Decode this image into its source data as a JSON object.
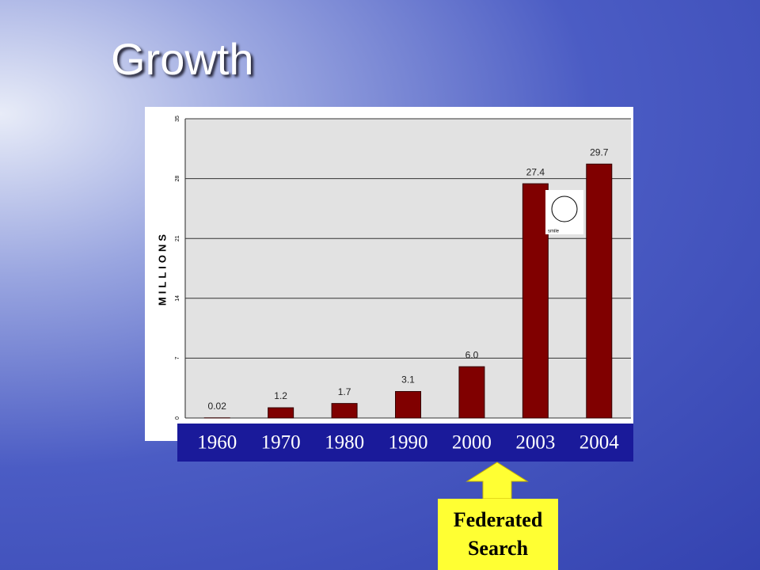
{
  "title": "Growth",
  "chart_data": {
    "type": "bar",
    "y_axis_label": "MILLIONS",
    "categories": [
      "1960",
      "1970",
      "1980",
      "1990",
      "2000",
      "2003",
      "2004"
    ],
    "values": [
      0.02,
      1.2,
      1.7,
      3.1,
      6.0,
      27.4,
      29.7
    ],
    "value_labels": [
      "0.02",
      "1.2",
      "1.7",
      "3.1",
      "6.0",
      "27.4",
      "29.7"
    ],
    "color": "#800000",
    "ylim": [
      0,
      35
    ],
    "yticks": [
      0,
      7,
      14,
      21,
      28,
      35
    ],
    "grid": true,
    "image_caption": "smile",
    "annotation": "Federated Search"
  }
}
